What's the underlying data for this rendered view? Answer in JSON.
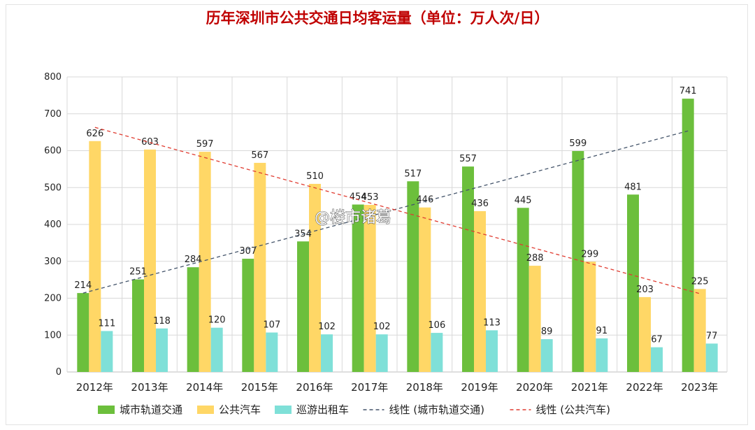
{
  "chart_data": {
    "type": "bar",
    "title": "历年深圳市公共交通日均客运量（单位：万人次/日）",
    "categories": [
      "2012年",
      "2013年",
      "2014年",
      "2015年",
      "2016年",
      "2017年",
      "2018年",
      "2019年",
      "2020年",
      "2021年",
      "2022年",
      "2023年"
    ],
    "series": [
      {
        "name": "城市轨道交通",
        "color": "#6cbf3c",
        "values": [
          214,
          251,
          284,
          307,
          354,
          454,
          517,
          557,
          445,
          599,
          481,
          741
        ]
      },
      {
        "name": "公共汽车",
        "color": "#ffd766",
        "values": [
          626,
          603,
          597,
          567,
          510,
          453,
          446,
          436,
          288,
          299,
          203,
          225
        ]
      },
      {
        "name": "巡游出租车",
        "color": "#7fe0d8",
        "values": [
          111,
          118,
          120,
          107,
          102,
          102,
          106,
          113,
          89,
          91,
          67,
          77
        ]
      }
    ],
    "trendlines": [
      {
        "name": "线性 (城市轨道交通)",
        "series": "城市轨道交通",
        "color": "#44546a",
        "style": "dashed"
      },
      {
        "name": "线性 (公共汽车)",
        "series": "公共汽车",
        "color": "#e03c31",
        "style": "dashed"
      }
    ],
    "ylim": [
      0,
      800
    ],
    "yticks": [
      0,
      100,
      200,
      300,
      400,
      500,
      600,
      700,
      800
    ],
    "grid": true,
    "legend_position": "bottom"
  },
  "watermark": "@楼市诸葛"
}
